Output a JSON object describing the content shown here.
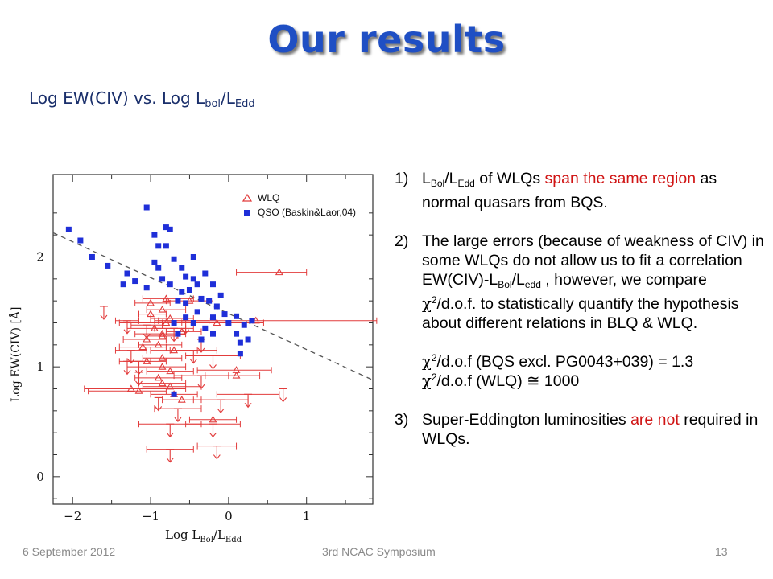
{
  "slide": {
    "title": "Our results",
    "subtitle_main": "Log EW(CIV) vs. Log L",
    "subtitle_sub1": "bol",
    "subtitle_slash": "/L",
    "subtitle_sub2": "Edd"
  },
  "bullets": {
    "b1": {
      "num": "1)",
      "l1": "L",
      "sub1": "Bol",
      "l2": "/L",
      "sub2": "Edd",
      "l3": " of WLQs ",
      "red": "span the same region",
      "l4": " as normal quasars from BQS."
    },
    "b2": {
      "num": "2)",
      "text1": "The large errors (because of weakness of CIV) in some WLQs do not allow us to fit a correlation EW(CIV)-L",
      "sub1": "Bol",
      "text2": "/L",
      "sub2": "edd",
      "text3": " , however, we compare ",
      "chi": "χ",
      "sup": "2",
      "text4": "/d.o.f. to statistically quantify the hypothesis about different relations in BLQ & WLQ.",
      "chi1_sym": "χ",
      "chi1_sup": "2",
      "chi1_text": "/d.o.f (BQS excl. PG0043+039) = 1.3",
      "chi2_sym": "χ",
      "chi2_sup": "2",
      "chi2_text": "/d.o.f (WLQ) ≅ 1000"
    },
    "b3": {
      "num": "3)",
      "l1": "Super-Eddington luminosities ",
      "red": "are not",
      "l2": " required in WLQs."
    }
  },
  "footer": {
    "date": "6 September 2012",
    "event": "3rd NCAC Symposium",
    "page": "13"
  },
  "colors": {
    "title": "#1f4fc4",
    "wlq": "#e23c3c",
    "qso": "#1f2fd8",
    "fit_line": "#555555"
  },
  "chart_data": {
    "type": "scatter",
    "xlabel_main": "Log  L",
    "xlabel_sub1": "Bol",
    "xlabel_slash": "/L",
    "xlabel_sub2": "Edd",
    "ylabel": "Log  EW(CIV)  [Å]",
    "xlim": [
      -2.25,
      1.85
    ],
    "ylim": [
      -0.25,
      2.75
    ],
    "xticks": [
      -2,
      -1,
      0,
      1
    ],
    "xtick_labels": [
      "−2",
      "−1",
      "0",
      "1"
    ],
    "yticks": [
      0,
      1,
      2
    ],
    "ytick_labels": [
      "0",
      "1",
      "2"
    ],
    "legend_position": "top-right",
    "fit_line": {
      "x": [
        -2.25,
        1.85
      ],
      "y": [
        2.22,
        0.88
      ],
      "style": "dashed"
    },
    "series": [
      {
        "name": "WLQ",
        "marker": "open-triangle",
        "points": [
          {
            "x": 0.65,
            "y": 1.86,
            "xerr": [
              0.55,
              0.35
            ]
          },
          {
            "x": 0.35,
            "y": 1.42,
            "xerr": [
              1.3,
              1.55
            ]
          },
          {
            "x": -0.15,
            "y": 1.4,
            "xerr": [
              0.7,
              0.6
            ]
          },
          {
            "x": 0.1,
            "y": 0.97,
            "xerr": [
              0.5,
              0.45
            ]
          },
          {
            "x": 0.1,
            "y": 0.92,
            "xerr": [
              0.4,
              0.3
            ]
          },
          {
            "x": -0.8,
            "y": 1.62,
            "xerr": [
              0.3,
              0.35
            ]
          },
          {
            "x": -1.0,
            "y": 1.58,
            "xerr": [
              0.2,
              0.25
            ]
          },
          {
            "x": -0.5,
            "y": 1.6,
            "xerr": [
              0.3,
              0.3
            ]
          },
          {
            "x": -1.0,
            "y": 1.48,
            "xerr": [
              0.15,
              0.2
            ]
          },
          {
            "x": -0.85,
            "y": 1.52,
            "xerr": [
              0.2,
              0.3
            ]
          },
          {
            "x": -0.75,
            "y": 1.44,
            "xerr": [
              0.25,
              0.3
            ]
          },
          {
            "x": -0.8,
            "y": 1.4,
            "xerr": [
              0.6,
              0.2
            ]
          },
          {
            "x": -0.95,
            "y": 1.35,
            "xerr": [
              0.35,
              0.4
            ]
          },
          {
            "x": -0.85,
            "y": 1.3,
            "xerr": [
              0.35,
              0.3
            ]
          },
          {
            "x": -1.05,
            "y": 1.25,
            "xerr": [
              0.3,
              0.25
            ]
          },
          {
            "x": -1.1,
            "y": 1.18,
            "xerr": [
              0.3,
              0.3
            ]
          },
          {
            "x": -0.9,
            "y": 1.2,
            "xerr": [
              0.25,
              0.3
            ]
          },
          {
            "x": -0.7,
            "y": 1.15,
            "xerr": [
              0.3,
              0.3
            ]
          },
          {
            "x": -1.05,
            "y": 1.05,
            "xerr": [
              0.35,
              0.25
            ]
          },
          {
            "x": -0.85,
            "y": 1.08,
            "xerr": [
              0.25,
              0.25
            ]
          },
          {
            "x": -0.85,
            "y": 1.0,
            "xerr": [
              0.45,
              0.3
            ]
          },
          {
            "x": -0.75,
            "y": 0.96,
            "xerr": [
              0.3,
              0.3
            ]
          },
          {
            "x": -0.9,
            "y": 0.9,
            "xerr": [
              0.3,
              0.3
            ]
          },
          {
            "x": -0.85,
            "y": 0.85,
            "xerr": [
              0.3,
              0.3
            ]
          },
          {
            "x": -0.75,
            "y": 0.82,
            "xerr": [
              0.35,
              0.4
            ]
          },
          {
            "x": -1.15,
            "y": 0.78,
            "xerr": [
              0.65,
              0.35
            ]
          },
          {
            "x": -1.25,
            "y": 0.8,
            "xerr": [
              0.6,
              0.7
            ]
          },
          {
            "x": -0.7,
            "y": 0.75,
            "xerr": [
              0.3,
              0.3
            ]
          },
          {
            "x": -0.6,
            "y": 0.7,
            "xerr": [
              0.25,
              0.25
            ]
          },
          {
            "x": -0.2,
            "y": 0.52,
            "xerr": [
              0.3,
              0.3
            ]
          },
          {
            "x": -0.85,
            "y": 1.28,
            "xerr": [
              0.2,
              0.2
            ]
          },
          {
            "x": -0.6,
            "y": 1.32,
            "xerr": [
              0.2,
              0.25
            ]
          }
        ],
        "upper_limits": [
          {
            "x": -1.6,
            "y": 1.55,
            "xerr": [
              0,
              0
            ]
          },
          {
            "x": -1.3,
            "y": 1.42,
            "xerr": [
              0.15,
              0.15
            ]
          },
          {
            "x": -1.25,
            "y": 1.15,
            "xerr": [
              0.2,
              0.2
            ]
          },
          {
            "x": -1.3,
            "y": 1.05,
            "xerr": [
              0,
              0
            ]
          },
          {
            "x": -1.15,
            "y": 1.05,
            "xerr": [
              0.15,
              0.15
            ]
          },
          {
            "x": -1.15,
            "y": 0.95,
            "xerr": [
              0,
              0
            ]
          },
          {
            "x": -0.7,
            "y": 1.35,
            "xerr": [
              0.25,
              0.25
            ]
          },
          {
            "x": -0.55,
            "y": 1.42,
            "xerr": [
              0.35,
              0.3
            ]
          },
          {
            "x": -0.45,
            "y": 1.15,
            "xerr": [
              0.3,
              0.3
            ]
          },
          {
            "x": -0.35,
            "y": 1.25,
            "xerr": [
              0,
              0
            ]
          },
          {
            "x": -0.2,
            "y": 1.1,
            "xerr": [
              0.35,
              0.35
            ]
          },
          {
            "x": -0.35,
            "y": 0.92,
            "xerr": [
              0.35,
              0.35
            ]
          },
          {
            "x": -0.9,
            "y": 0.72,
            "xerr": [
              0,
              0
            ]
          },
          {
            "x": -0.65,
            "y": 0.62,
            "xerr": [
              0.3,
              0.3
            ]
          },
          {
            "x": -0.1,
            "y": 0.7,
            "xerr": [
              0.35,
              0.35
            ]
          },
          {
            "x": 0.25,
            "y": 0.75,
            "xerr": [
              0.4,
              0.4
            ]
          },
          {
            "x": 0.7,
            "y": 0.8,
            "xerr": [
              0,
              0
            ]
          },
          {
            "x": -0.2,
            "y": 0.48,
            "xerr": [
              0.35,
              0.35
            ]
          },
          {
            "x": -0.75,
            "y": 0.25,
            "xerr": [
              0.3,
              0.3
            ]
          },
          {
            "x": -0.15,
            "y": 0.28,
            "xerr": [
              0.25,
              0.25
            ]
          },
          {
            "x": -0.75,
            "y": 0.48,
            "xerr": [
              0.4,
              0.4
            ]
          },
          {
            "x": -1.05,
            "y": 1.38,
            "xerr": [
              0.2,
              0.2
            ]
          }
        ]
      },
      {
        "name": "QSO (Baskin&Laor,04)",
        "marker": "filled-square",
        "points": [
          {
            "x": -2.05,
            "y": 2.25
          },
          {
            "x": -1.75,
            "y": 2.0
          },
          {
            "x": -1.9,
            "y": 2.15
          },
          {
            "x": -1.55,
            "y": 1.92
          },
          {
            "x": -1.3,
            "y": 1.85
          },
          {
            "x": -1.2,
            "y": 1.78
          },
          {
            "x": -1.35,
            "y": 1.75
          },
          {
            "x": -1.05,
            "y": 2.45
          },
          {
            "x": -0.95,
            "y": 2.2
          },
          {
            "x": -0.9,
            "y": 2.1
          },
          {
            "x": -0.95,
            "y": 1.95
          },
          {
            "x": -0.8,
            "y": 2.27
          },
          {
            "x": -0.75,
            "y": 2.25
          },
          {
            "x": -0.8,
            "y": 2.1
          },
          {
            "x": -0.7,
            "y": 1.98
          },
          {
            "x": -0.9,
            "y": 1.9
          },
          {
            "x": -0.85,
            "y": 1.8
          },
          {
            "x": -1.05,
            "y": 1.72
          },
          {
            "x": -0.75,
            "y": 1.75
          },
          {
            "x": -0.6,
            "y": 1.9
          },
          {
            "x": -0.55,
            "y": 1.82
          },
          {
            "x": -0.45,
            "y": 1.8
          },
          {
            "x": -0.5,
            "y": 1.7
          },
          {
            "x": -0.4,
            "y": 1.75
          },
          {
            "x": -0.3,
            "y": 1.85
          },
          {
            "x": -0.2,
            "y": 1.75
          },
          {
            "x": -0.1,
            "y": 1.65
          },
          {
            "x": -0.35,
            "y": 1.62
          },
          {
            "x": -0.25,
            "y": 1.6
          },
          {
            "x": -0.65,
            "y": 1.6
          },
          {
            "x": -0.55,
            "y": 1.58
          },
          {
            "x": -0.4,
            "y": 1.5
          },
          {
            "x": -0.2,
            "y": 1.45
          },
          {
            "x": -0.3,
            "y": 1.35
          },
          {
            "x": -0.05,
            "y": 1.48
          },
          {
            "x": 0.0,
            "y": 1.4
          },
          {
            "x": 0.1,
            "y": 1.46
          },
          {
            "x": 0.2,
            "y": 1.38
          },
          {
            "x": 0.3,
            "y": 1.42
          },
          {
            "x": 0.1,
            "y": 1.3
          },
          {
            "x": 0.15,
            "y": 1.22
          },
          {
            "x": 0.25,
            "y": 1.25
          },
          {
            "x": 0.15,
            "y": 1.12
          },
          {
            "x": -0.15,
            "y": 1.55
          },
          {
            "x": -0.45,
            "y": 2.0
          },
          {
            "x": -0.7,
            "y": 1.4
          },
          {
            "x": -0.55,
            "y": 1.45
          },
          {
            "x": -0.65,
            "y": 1.3
          },
          {
            "x": -0.2,
            "y": 1.3
          },
          {
            "x": -0.7,
            "y": 0.75
          },
          {
            "x": -0.35,
            "y": 1.25
          },
          {
            "x": -0.6,
            "y": 1.68
          },
          {
            "x": -0.45,
            "y": 1.4
          }
        ]
      }
    ]
  }
}
